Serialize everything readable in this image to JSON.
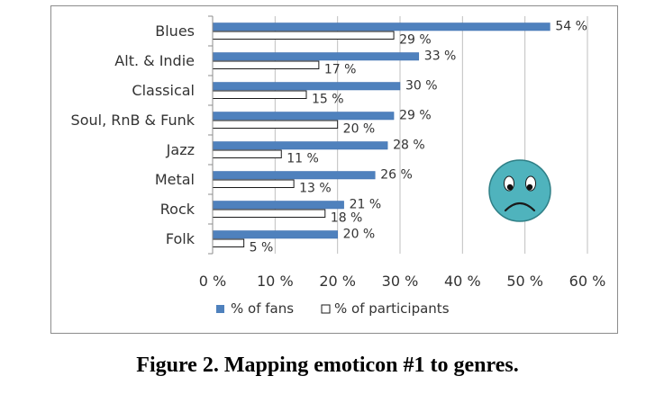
{
  "figure": {
    "caption": "Figure 2. Mapping emoticon #1 to genres."
  },
  "emoticon": {
    "icon": "sad-face-icon",
    "face_color": "#4fb3bd",
    "outline_color": "#2f7f86"
  },
  "chart_data": {
    "type": "bar",
    "orientation": "horizontal",
    "categories": [
      "Blues",
      "Alt. & Indie",
      "Classical",
      "Soul, RnB & Funk",
      "Jazz",
      "Metal",
      "Rock",
      "Folk"
    ],
    "series": [
      {
        "name": "% of fans",
        "color": "#4f81bd",
        "values": [
          54,
          33,
          30,
          29,
          28,
          26,
          21,
          20
        ],
        "labels": [
          "54 %",
          "33 %",
          "30 %",
          "29 %",
          "28 %",
          "26 %",
          "21 %",
          "20 %"
        ]
      },
      {
        "name": "% of participants",
        "color": "#ffffff",
        "values": [
          29,
          17,
          15,
          20,
          11,
          13,
          18,
          5
        ],
        "labels": [
          "29 %",
          "17 %",
          "15 %",
          "20 %",
          "11 %",
          "13 %",
          "18 %",
          "5 %"
        ]
      }
    ],
    "xlim": [
      0,
      60
    ],
    "xticks": [
      0,
      10,
      20,
      30,
      40,
      50,
      60
    ],
    "xtick_labels": [
      "0 %",
      "10 %",
      "20 %",
      "30 %",
      "40 %",
      "50 %",
      "60 %"
    ],
    "grid": true,
    "legend_position": "bottom"
  }
}
